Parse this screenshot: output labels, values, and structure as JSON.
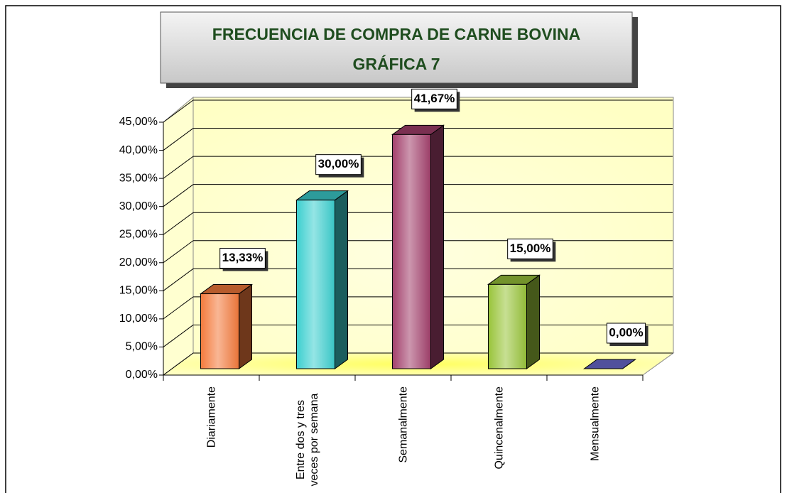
{
  "chart_data": {
    "type": "bar3d",
    "title": "FRECUENCIA DE COMPRA DE CARNE BOVINA",
    "subtitle": "GRÁFICA 7",
    "categories": [
      "Diariamente",
      "Entre dos y tres veces por semana",
      "Semanalmente",
      "Quincenalmente",
      "Mensualmente"
    ],
    "values": [
      13.33,
      30,
      41.67,
      15,
      0
    ],
    "value_labels": [
      "13,33%",
      "30,00%",
      "41,67%",
      "15,00%",
      "0,00%"
    ],
    "colors": [
      "#f47a3c",
      "#3ccfcf",
      "#a3406c",
      "#99c43a",
      "#6a6ad0"
    ],
    "ylim": [
      0,
      45
    ],
    "yticks": [
      {
        "value": 0,
        "label": "0,00%"
      },
      {
        "value": 5,
        "label": "5,00%"
      },
      {
        "value": 10,
        "label": "10,00%"
      },
      {
        "value": 15,
        "label": "15,00%"
      },
      {
        "value": 20,
        "label": "20,00%"
      },
      {
        "value": 25,
        "label": "25,00%"
      },
      {
        "value": 30,
        "label": "30,00%"
      },
      {
        "value": 35,
        "label": "35,00%"
      },
      {
        "value": 40,
        "label": "40,00%"
      },
      {
        "value": 45,
        "label": "45,00%"
      }
    ],
    "grid": true
  }
}
